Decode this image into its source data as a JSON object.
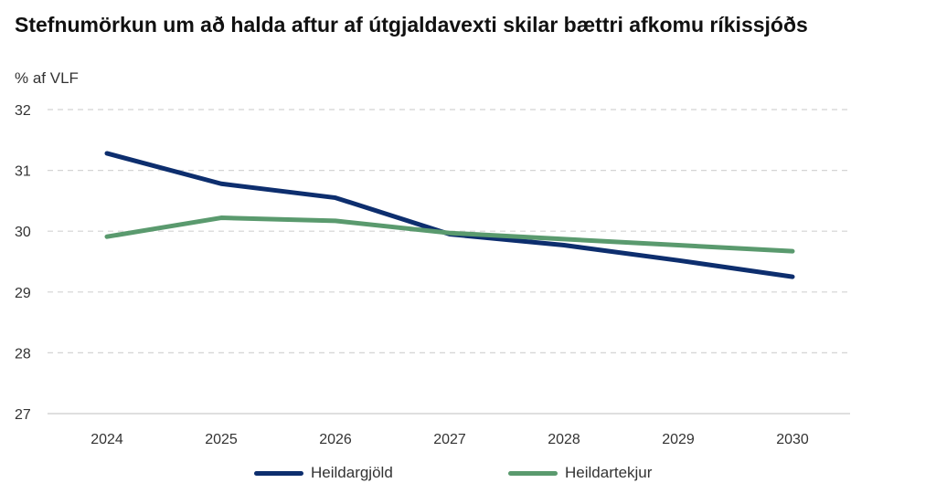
{
  "chart_data": {
    "type": "line",
    "title": "Stefnumörkun um að halda aftur af útgjaldavexti skilar bættri afkomu ríkissjóðs",
    "ylabel": "% af VLF",
    "xlabel": "",
    "categories": [
      "2024",
      "2025",
      "2026",
      "2027",
      "2028",
      "2029",
      "2030"
    ],
    "ylim": [
      27,
      32
    ],
    "yticks": [
      27,
      28,
      29,
      30,
      31,
      32
    ],
    "grid": true,
    "legend_position": "bottom",
    "series": [
      {
        "name": "Heildargjöld",
        "color": "#0d2e6e",
        "values": [
          31.28,
          30.78,
          30.55,
          29.95,
          29.77,
          29.52,
          29.25
        ]
      },
      {
        "name": "Heildartekjur",
        "color": "#5a9a6e",
        "values": [
          29.91,
          30.22,
          30.17,
          29.97,
          29.87,
          29.77,
          29.67
        ]
      }
    ]
  }
}
